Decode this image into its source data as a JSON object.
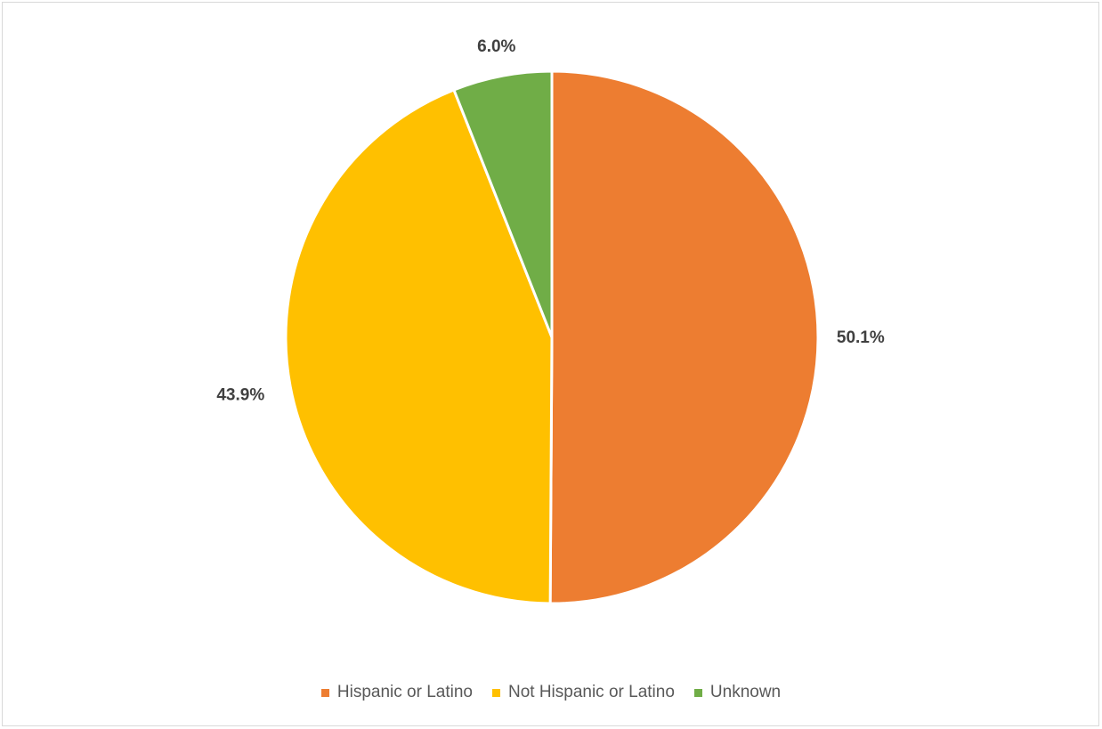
{
  "chart_data": {
    "type": "pie",
    "title": "",
    "slices": [
      {
        "name": "Hispanic or Latino",
        "value": 50.1,
        "label": "50.1%",
        "color": "#ED7D31"
      },
      {
        "name": "Not Hispanic or Latino",
        "value": 43.9,
        "label": "43.9%",
        "color": "#FFC000"
      },
      {
        "name": "Unknown",
        "value": 6.0,
        "label": "6.0%",
        "color": "#70AD47"
      }
    ],
    "legend": {
      "position": "bottom",
      "items": [
        "Hispanic or Latino",
        "Not Hispanic or Latino",
        "Unknown"
      ]
    },
    "start_angle": "12 o'clock",
    "direction": "clockwise"
  }
}
